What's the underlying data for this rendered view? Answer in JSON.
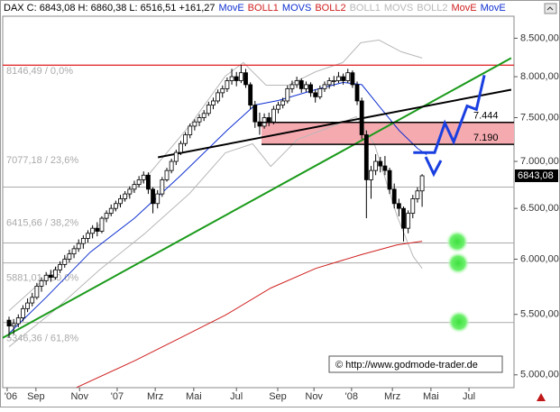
{
  "chart_data": {
    "type": "candlestick",
    "title": "DAX C: 6843,08 H: 6860,38 L: 6516,51 +161,27",
    "legend": [
      {
        "name": "MovE",
        "color": "#1030d0"
      },
      {
        "name": "BOLL1",
        "color": "#d02020"
      },
      {
        "name": "MOVS",
        "color": "#1030d0"
      },
      {
        "name": "BOLL2",
        "color": "#d02020"
      },
      {
        "name": "BOLL1",
        "color": "#b8b8b8"
      },
      {
        "name": "MOVS",
        "color": "#b8b8b8"
      },
      {
        "name": "BOLL2",
        "color": "#b8b8b8"
      },
      {
        "name": "MovE",
        "color": "#d02020"
      },
      {
        "name": "MovE",
        "color": "#1030d0"
      }
    ],
    "categories": [
      null,
      null,
      null,
      null,
      null,
      null,
      null,
      null,
      null,
      null,
      null,
      null,
      null,
      null,
      null,
      null,
      null,
      null,
      null,
      null,
      null,
      null,
      null,
      null,
      null,
      null,
      null,
      null,
      null,
      null,
      null,
      null,
      null,
      null,
      null,
      null,
      null,
      null,
      null,
      null,
      null,
      null,
      null,
      null,
      null,
      null,
      null,
      null,
      null,
      null,
      null,
      null,
      null,
      null,
      null,
      null,
      null,
      null,
      null,
      null,
      null,
      null,
      null,
      null,
      null,
      null,
      null,
      null,
      null,
      null,
      null,
      null,
      null,
      null,
      null,
      null,
      null,
      null,
      null,
      null,
      null,
      null,
      null,
      null,
      null,
      null,
      null,
      null,
      null,
      null
    ],
    "ohlc": [
      [
        5450,
        5480,
        5300,
        5400
      ],
      [
        5400,
        5460,
        5330,
        5420
      ],
      [
        5420,
        5500,
        5390,
        5470
      ],
      [
        5470,
        5580,
        5440,
        5550
      ],
      [
        5550,
        5640,
        5520,
        5600
      ],
      [
        5600,
        5690,
        5570,
        5650
      ],
      [
        5650,
        5780,
        5630,
        5750
      ],
      [
        5750,
        5830,
        5700,
        5800
      ],
      [
        5800,
        5880,
        5760,
        5850
      ],
      [
        5850,
        5900,
        5790,
        5830
      ],
      [
        5830,
        5930,
        5810,
        5900
      ],
      [
        5900,
        5980,
        5870,
        5950
      ],
      [
        5950,
        6040,
        5920,
        6000
      ],
      [
        6000,
        6090,
        5970,
        6050
      ],
      [
        6050,
        6130,
        6010,
        6100
      ],
      [
        6100,
        6190,
        6070,
        6150
      ],
      [
        6150,
        6230,
        6100,
        6200
      ],
      [
        6200,
        6280,
        6160,
        6250
      ],
      [
        6250,
        6330,
        6200,
        6300
      ],
      [
        6300,
        6360,
        6220,
        6270
      ],
      [
        6270,
        6420,
        6250,
        6400
      ],
      [
        6400,
        6480,
        6360,
        6450
      ],
      [
        6450,
        6540,
        6420,
        6500
      ],
      [
        6500,
        6580,
        6470,
        6550
      ],
      [
        6550,
        6640,
        6510,
        6600
      ],
      [
        6600,
        6680,
        6570,
        6650
      ],
      [
        6650,
        6730,
        6600,
        6700
      ],
      [
        6700,
        6790,
        6660,
        6750
      ],
      [
        6750,
        6840,
        6720,
        6800
      ],
      [
        6800,
        6890,
        6760,
        6850
      ],
      [
        6850,
        6880,
        6650,
        6700
      ],
      [
        6700,
        6720,
        6450,
        6550
      ],
      [
        6550,
        6690,
        6500,
        6650
      ],
      [
        6650,
        6830,
        6620,
        6800
      ],
      [
        6800,
        6930,
        6780,
        6900
      ],
      [
        6900,
        7030,
        6870,
        7000
      ],
      [
        7000,
        7130,
        6960,
        7100
      ],
      [
        7100,
        7230,
        7070,
        7200
      ],
      [
        7200,
        7330,
        7170,
        7300
      ],
      [
        7300,
        7430,
        7260,
        7400
      ],
      [
        7400,
        7480,
        7350,
        7450
      ],
      [
        7450,
        7540,
        7400,
        7500
      ],
      [
        7500,
        7590,
        7460,
        7550
      ],
      [
        7550,
        7690,
        7520,
        7650
      ],
      [
        7650,
        7740,
        7600,
        7700
      ],
      [
        7700,
        7840,
        7670,
        7800
      ],
      [
        7800,
        7890,
        7740,
        7850
      ],
      [
        7850,
        7990,
        7810,
        7950
      ],
      [
        7950,
        8100,
        7900,
        8000
      ],
      [
        8000,
        8060,
        7880,
        7950
      ],
      [
        7950,
        8150,
        7920,
        8050
      ],
      [
        8050,
        8100,
        7860,
        7900
      ],
      [
        7900,
        7930,
        7600,
        7650
      ],
      [
        7650,
        7700,
        7380,
        7450
      ],
      [
        7450,
        7560,
        7300,
        7400
      ],
      [
        7400,
        7550,
        7370,
        7500
      ],
      [
        7500,
        7560,
        7400,
        7450
      ],
      [
        7450,
        7640,
        7420,
        7600
      ],
      [
        7600,
        7690,
        7550,
        7650
      ],
      [
        7650,
        7740,
        7610,
        7700
      ],
      [
        7700,
        7890,
        7670,
        7850
      ],
      [
        7850,
        7950,
        7800,
        7900
      ],
      [
        7900,
        8000,
        7860,
        7950
      ],
      [
        7950,
        7980,
        7800,
        7850
      ],
      [
        7850,
        7940,
        7810,
        7900
      ],
      [
        7900,
        7930,
        7750,
        7800
      ],
      [
        7800,
        7840,
        7680,
        7750
      ],
      [
        7750,
        7890,
        7720,
        7850
      ],
      [
        7850,
        7940,
        7810,
        7900
      ],
      [
        7900,
        7990,
        7850,
        7950
      ],
      [
        7950,
        8010,
        7880,
        7950
      ],
      [
        7950,
        8060,
        7920,
        8000
      ],
      [
        8000,
        8040,
        7900,
        7950
      ],
      [
        7950,
        8100,
        7920,
        8050
      ],
      [
        8050,
        8080,
        7860,
        7900
      ],
      [
        7900,
        7940,
        7650,
        7700
      ],
      [
        7700,
        7740,
        7250,
        7300
      ],
      [
        7300,
        7350,
        6400,
        6800
      ],
      [
        6800,
        6950,
        6600,
        6900
      ],
      [
        6900,
        7080,
        6850,
        7000
      ],
      [
        7000,
        7050,
        6880,
        6950
      ],
      [
        6950,
        7060,
        6850,
        6900
      ],
      [
        6900,
        6930,
        6650,
        6700
      ],
      [
        6700,
        6760,
        6500,
        6550
      ],
      [
        6550,
        6600,
        6420,
        6500
      ],
      [
        6500,
        6520,
        6170,
        6300
      ],
      [
        6300,
        6480,
        6250,
        6450
      ],
      [
        6450,
        6640,
        6400,
        6600
      ],
      [
        6600,
        6720,
        6560,
        6681.81
      ],
      [
        6681.81,
        6860.38,
        6516.51,
        6843.08
      ]
    ],
    "candle_colors": {
      "up": "#ffffff",
      "down": "#000000"
    },
    "overlays": [
      {
        "color": "#b8b8b8",
        "x": [
          0,
          9.7,
          19.4,
          29.1,
          38.9,
          46.6,
          50.5,
          55.4,
          60.2,
          66.1,
          71.9,
          75.8,
          79.7,
          84.5,
          89
        ],
        "values": [
          5532,
          5897,
          6332,
          6799,
          7404,
          8007,
          8180,
          7894,
          7894,
          8064,
          8180,
          8440,
          8476,
          8321,
          8238
        ]
      },
      {
        "color": "#b8b8b8",
        "x": [
          0,
          9.7,
          19.4,
          29.1,
          38.9,
          46.6,
          52.5,
          56.4,
          62.2,
          70,
          74.8,
          78.7,
          83.6,
          87.1,
          89
        ],
        "values": [
          5226,
          5532,
          5897,
          6242,
          6655,
          7095,
          7197,
          6945,
          7248,
          7404,
          7511,
          7197,
          6423,
          6025,
          5914
        ]
      },
      {
        "color": "#1030d0",
        "x": [
          0,
          8,
          17.5,
          27,
          37,
          47,
          53,
          58,
          66,
          72,
          76,
          80,
          84,
          88,
          90
        ],
        "values": [
          5337,
          5650,
          6067,
          6400,
          6847,
          7352,
          7650,
          7705,
          7838,
          7928,
          7900,
          7619,
          7352,
          7146,
          7074
        ]
      },
      {
        "color": "#d02020",
        "x": [
          14.6,
          27.2,
          36.9,
          46.6,
          56.4,
          66.1,
          75.8,
          83.6,
          89
        ],
        "values": [
          4902,
          5115,
          5300,
          5493,
          5733,
          5914,
          6042,
          6137,
          6172
        ]
      }
    ],
    "xlim": [
      -1.36,
      108.8
    ],
    "xticks": [
      {
        "value": -0.4,
        "label": "'06"
      },
      {
        "value": 5.8,
        "label": "Sep"
      },
      {
        "value": 15.2,
        "label": "Nov"
      },
      {
        "value": 23.3,
        "label": "'07"
      },
      {
        "value": 31.5,
        "label": "Mrz"
      },
      {
        "value": 39.8,
        "label": "Mai"
      },
      {
        "value": 49,
        "label": "Jul"
      },
      {
        "value": 57.9,
        "label": "Sep"
      },
      {
        "value": 65.7,
        "label": "Nov"
      },
      {
        "value": 73.8,
        "label": "'08"
      },
      {
        "value": 82.6,
        "label": "Mrz"
      },
      {
        "value": 90.9,
        "label": "Mai"
      },
      {
        "value": 99.1,
        "label": "Jul"
      }
    ],
    "ylim": [
      4900,
      8800
    ],
    "log_scale": true,
    "yticks": [
      {
        "value": 5000,
        "label": "5.000,00"
      },
      {
        "value": 5500,
        "label": "5.500,00"
      },
      {
        "value": 6000,
        "label": "6.000,00"
      },
      {
        "value": 6500,
        "label": "6.500,00"
      },
      {
        "value": 7000,
        "label": "7.000,00"
      },
      {
        "value": 7500,
        "label": "7.500,00"
      },
      {
        "value": 8000,
        "label": "8.000,00"
      },
      {
        "value": 8500,
        "label": "8.500,00"
      }
    ],
    "last_price": {
      "value": 6843.08,
      "label": "6843,08"
    },
    "fib_levels": [
      {
        "value": 8146.49,
        "label": "8146,49 / 0,0%"
      },
      {
        "value": 7077.18,
        "label": "7077,18 / 23,6%"
      },
      {
        "value": 6415.66,
        "label": "6415,66 / 38,2%"
      },
      {
        "value": 5881.01,
        "label": "5881,01 / 50,0%"
      },
      {
        "value": 5346.36,
        "label": "5346,36 / 61,8%"
      }
    ],
    "resistance": {
      "value": 8146.49,
      "color": "#e03030"
    },
    "support_lines": [
      6722,
      6155,
      5965,
      5430
    ],
    "zone": {
      "x0": 54.4,
      "values": [
        7444,
        7190
      ],
      "value_labels": [
        "7.444",
        "7.190"
      ],
      "color": "#f5aab0"
    },
    "trendlines": [
      {
        "color": "#1a9a1a",
        "x": [
          -1.36,
          108.2
        ],
        "values": [
          5300,
          8238
        ]
      },
      {
        "color": "#000000",
        "x": [
          32.1,
          108.2
        ],
        "values": [
          7045,
          7838
        ]
      }
    ],
    "projection": {
      "color": "#1a3fe0",
      "x": [
        87.1,
        91.7,
        93.9,
        95.8,
        98.7,
        100.7,
        102.4
      ],
      "values": [
        7097,
        7097,
        7436,
        7218,
        7640,
        7597,
        8019
      ]
    },
    "copyright": "© http://www.godmode-trader.de"
  }
}
